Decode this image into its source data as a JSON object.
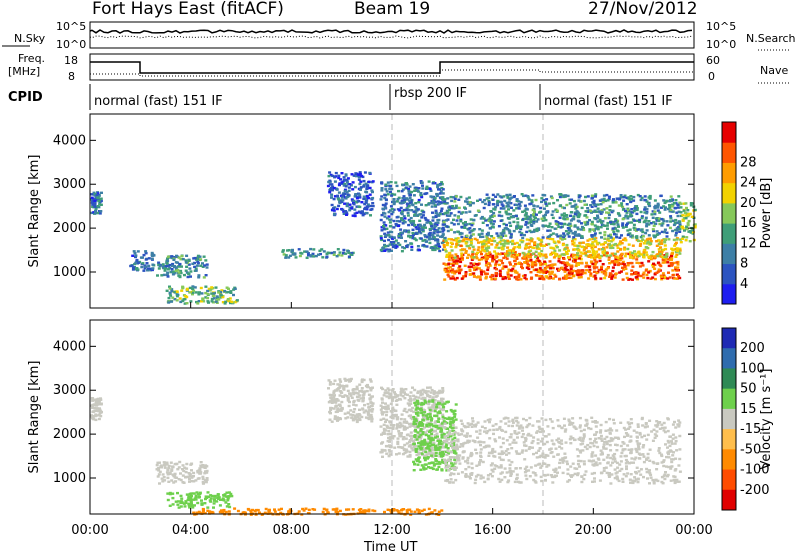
{
  "header": {
    "title": "Fort Hays East (fitACF)",
    "beam": "Beam 19",
    "date": "27/Nov/2012"
  },
  "strip_noise": {
    "left_label": "N.Sky",
    "right_label": "N.Search",
    "left_ticks": [
      "10^5",
      "10^0"
    ],
    "right_ticks": [
      "10^5",
      "10^0"
    ]
  },
  "strip_freq": {
    "left_label_1": "Freq.",
    "left_label_2": "[MHz]",
    "right_label": "Nave",
    "left_ticks": [
      "18",
      "8"
    ],
    "right_ticks": [
      "60",
      "0"
    ]
  },
  "cpid": {
    "label": "CPID",
    "segments": [
      "normal (fast) 151 IF",
      "rbsp 200 IF",
      "normal (fast) 151 IF"
    ]
  },
  "chart_data": [
    {
      "type": "heatmap",
      "title": "",
      "xlabel": "",
      "ylabel": "Slant Range [km]",
      "x_ticks": [
        "00:00",
        "04:00",
        "08:00",
        "12:00",
        "16:00",
        "20:00",
        "00:00"
      ],
      "y_ticks": [
        "1000",
        "2000",
        "3000",
        "4000"
      ],
      "xlim_hours": [
        0,
        24
      ],
      "ylim_km": [
        180,
        4600
      ],
      "colorbar": {
        "label": "Power [dB]",
        "ticks": [
          "4",
          "8",
          "12",
          "16",
          "20",
          "24",
          "28"
        ],
        "colors": [
          "#1e1ef0",
          "#2c54c0",
          "#3d7fa6",
          "#3f9e78",
          "#86c85a",
          "#f2d200",
          "#ff9c00",
          "#ff5500",
          "#e60000"
        ]
      },
      "scatter_regions": [
        {
          "t": [
            0.0,
            0.4
          ],
          "r": [
            2350,
            2850
          ],
          "v": 8
        },
        {
          "t": [
            1.5,
            2.5
          ],
          "r": [
            1050,
            1500
          ],
          "v": 8
        },
        {
          "t": [
            2.6,
            4.6
          ],
          "r": [
            900,
            1400
          ],
          "v": 10
        },
        {
          "t": [
            3.0,
            5.8
          ],
          "r": [
            300,
            700
          ],
          "v": 14
        },
        {
          "t": [
            7.6,
            10.4
          ],
          "r": [
            1350,
            1550
          ],
          "v": 10
        },
        {
          "t": [
            9.4,
            11.2
          ],
          "r": [
            2300,
            3300
          ],
          "v": 6
        },
        {
          "t": [
            11.5,
            14.0
          ],
          "r": [
            1500,
            3100
          ],
          "v": 8
        },
        {
          "t": [
            14.0,
            23.4
          ],
          "r": [
            850,
            1450
          ],
          "v": 26
        },
        {
          "t": [
            14.0,
            23.4
          ],
          "r": [
            1350,
            1800
          ],
          "v": 20
        },
        {
          "t": [
            14.0,
            23.4
          ],
          "r": [
            1800,
            2800
          ],
          "v": 10
        },
        {
          "t": [
            23.4,
            24.0
          ],
          "r": [
            1700,
            2600
          ],
          "v": 16
        }
      ]
    },
    {
      "type": "heatmap",
      "title": "",
      "xlabel": "Time UT",
      "ylabel": "Slant Range [km]",
      "x_ticks": [
        "00:00",
        "04:00",
        "08:00",
        "12:00",
        "16:00",
        "20:00",
        "00:00"
      ],
      "y_ticks": [
        "1000",
        "2000",
        "3000",
        "4000"
      ],
      "xlim_hours": [
        0,
        24
      ],
      "ylim_km": [
        180,
        4600
      ],
      "colorbar": {
        "label": "Velocity [m s⁻¹]",
        "ticks": [
          "200",
          "100",
          "50",
          "15",
          "-15",
          "-50",
          "-100",
          "-200"
        ],
        "colors": [
          "#1e2ab4",
          "#2f6cae",
          "#2f8a55",
          "#6ed04c",
          "#c9c9c0",
          "#ffbe4c",
          "#ff8a00",
          "#ff4c00",
          "#e00000"
        ]
      },
      "scatter_regions": [
        {
          "t": [
            0.0,
            0.4
          ],
          "r": [
            2350,
            2850
          ],
          "v": 0
        },
        {
          "t": [
            2.6,
            4.6
          ],
          "r": [
            900,
            1400
          ],
          "v": 0
        },
        {
          "t": [
            3.0,
            5.6
          ],
          "r": [
            350,
            700
          ],
          "v": 40
        },
        {
          "t": [
            9.4,
            11.2
          ],
          "r": [
            2300,
            3300
          ],
          "v": 0
        },
        {
          "t": [
            11.5,
            14.0
          ],
          "r": [
            1500,
            3100
          ],
          "v": 0
        },
        {
          "t": [
            12.8,
            14.5
          ],
          "r": [
            1200,
            2800
          ],
          "v": 45
        },
        {
          "t": [
            14.0,
            23.4
          ],
          "r": [
            900,
            2400
          ],
          "v": 0
        },
        {
          "t": [
            4.0,
            14.0
          ],
          "r": [
            190,
            330
          ],
          "v": -70
        }
      ]
    }
  ]
}
